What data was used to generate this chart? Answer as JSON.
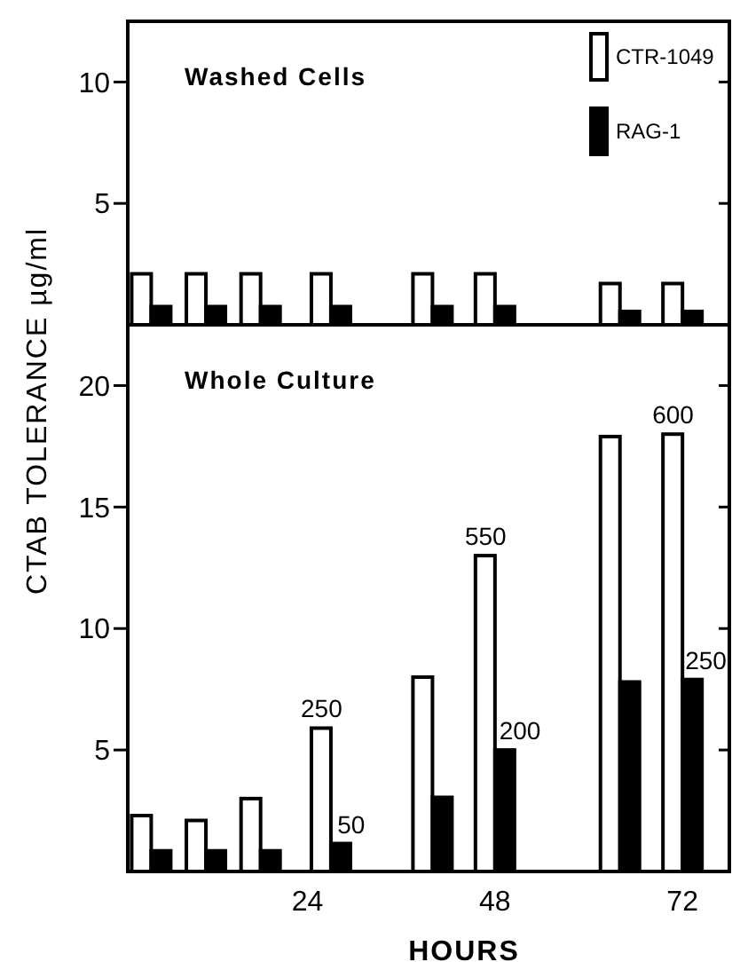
{
  "chart_data": [
    {
      "type": "bar",
      "title": "Washed Cells",
      "x": [
        4,
        11,
        18,
        27,
        40,
        48,
        64,
        72
      ],
      "xlim": [
        1,
        78
      ],
      "ylim": [
        0,
        12.5
      ],
      "yticks": [
        5,
        10
      ],
      "tick_labels": "y",
      "legend": "top right",
      "series": [
        {
          "name": "CTR-1049",
          "color": "#ffffff",
          "values": [
            2.1,
            2.1,
            2.1,
            2.1,
            2.1,
            2.1,
            1.7,
            1.7
          ]
        },
        {
          "name": "RAG-1",
          "color": "#000000",
          "values": [
            0.75,
            0.75,
            0.75,
            0.75,
            0.75,
            0.75,
            0.55,
            0.55
          ]
        }
      ]
    },
    {
      "type": "bar",
      "title": "Whole Culture",
      "x": [
        4,
        11,
        18,
        27,
        40,
        48,
        64,
        72
      ],
      "xlim": [
        1,
        78
      ],
      "ylim": [
        0,
        22.5
      ],
      "yticks": [
        5,
        10,
        15,
        20
      ],
      "xticks": [
        24,
        48,
        72
      ],
      "xlabel": "HOURS",
      "ylabel": "CTAB TOLERANCE µg/ml",
      "annotations": [
        {
          "text": "250",
          "x": 25.8,
          "y": 5.9
        },
        {
          "text": "50",
          "x": 29.6,
          "y": 1.15
        },
        {
          "text": "550",
          "x": 46.8,
          "y": 13.0
        },
        {
          "text": "200",
          "x": 51.2,
          "y": 5.0
        },
        {
          "text": "600",
          "x": 70.8,
          "y": 18.0
        },
        {
          "text": "250",
          "x": 75.0,
          "y": 7.9
        }
      ],
      "series": [
        {
          "color": "#ffffff",
          "values": [
            2.3,
            2.1,
            3.0,
            5.9,
            8.0,
            13.0,
            17.9,
            18.0
          ]
        },
        {
          "color": "#000000",
          "values": [
            0.85,
            0.85,
            0.85,
            1.15,
            3.05,
            5.0,
            7.8,
            7.9
          ]
        }
      ]
    }
  ]
}
